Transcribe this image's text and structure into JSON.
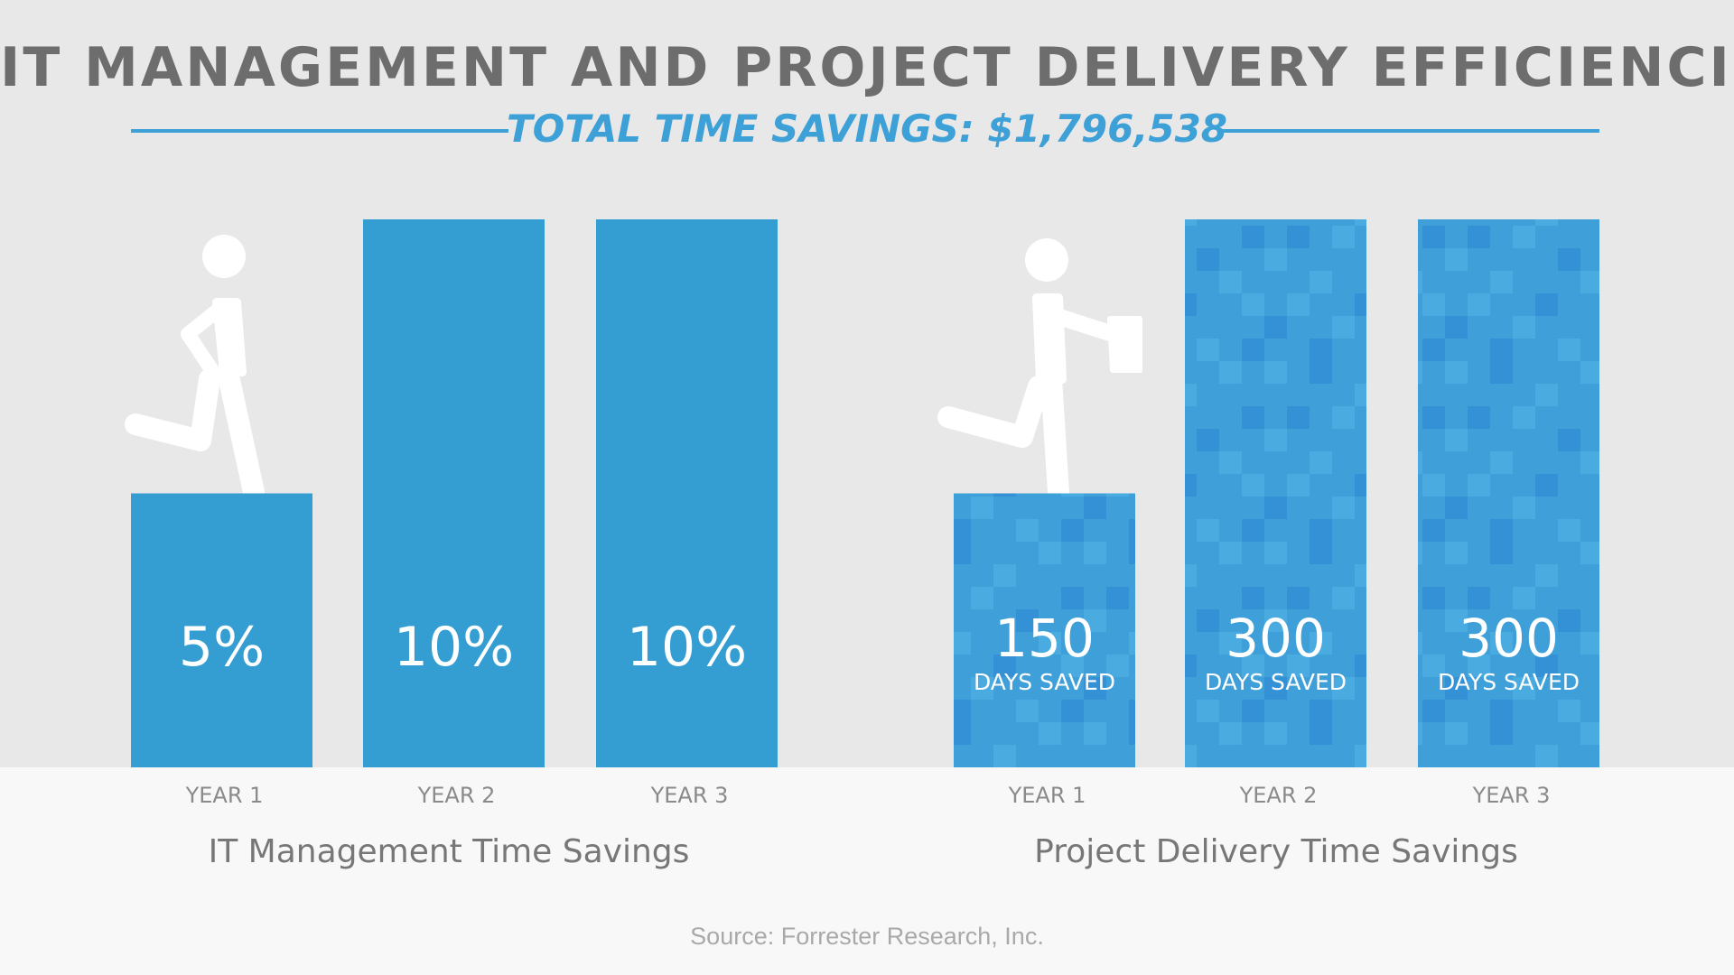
{
  "title": "IT MANAGEMENT AND PROJECT DELIVERY EFFICIENCIES",
  "subtitle": "TOTAL TIME SAVINGS: $1,796,538",
  "source": "Source: Forrester Research, Inc.",
  "colors": {
    "bar": "#349ed2",
    "bar_pattern_light": "#4aaae0",
    "bar_pattern_dark": "#3591d6",
    "title": "#6d6d6d",
    "accent": "#3da0d6",
    "tick_label": "#8a8a8a",
    "group_label": "#777777"
  },
  "icons": [
    "walking-person-icon",
    "person-with-briefcase-icon"
  ],
  "chart_data": [
    {
      "type": "bar",
      "title": "IT Management Time Savings",
      "categories": [
        "YEAR 1",
        "YEAR 2",
        "YEAR 3"
      ],
      "values": [
        5,
        10,
        10
      ],
      "value_labels": [
        "5%",
        "10%",
        "10%"
      ],
      "unit": "%",
      "ylim": [
        0,
        10
      ],
      "pattern": "solid",
      "grid": false
    },
    {
      "type": "bar",
      "title": "Project Delivery Time Savings",
      "categories": [
        "YEAR 1",
        "YEAR 2",
        "YEAR 3"
      ],
      "values": [
        150,
        300,
        300
      ],
      "value_labels": [
        "150",
        "300",
        "300"
      ],
      "value_sublabel": "DAYS SAVED",
      "unit": "days",
      "ylim": [
        0,
        300
      ],
      "pattern": "mosaic",
      "grid": false
    }
  ]
}
